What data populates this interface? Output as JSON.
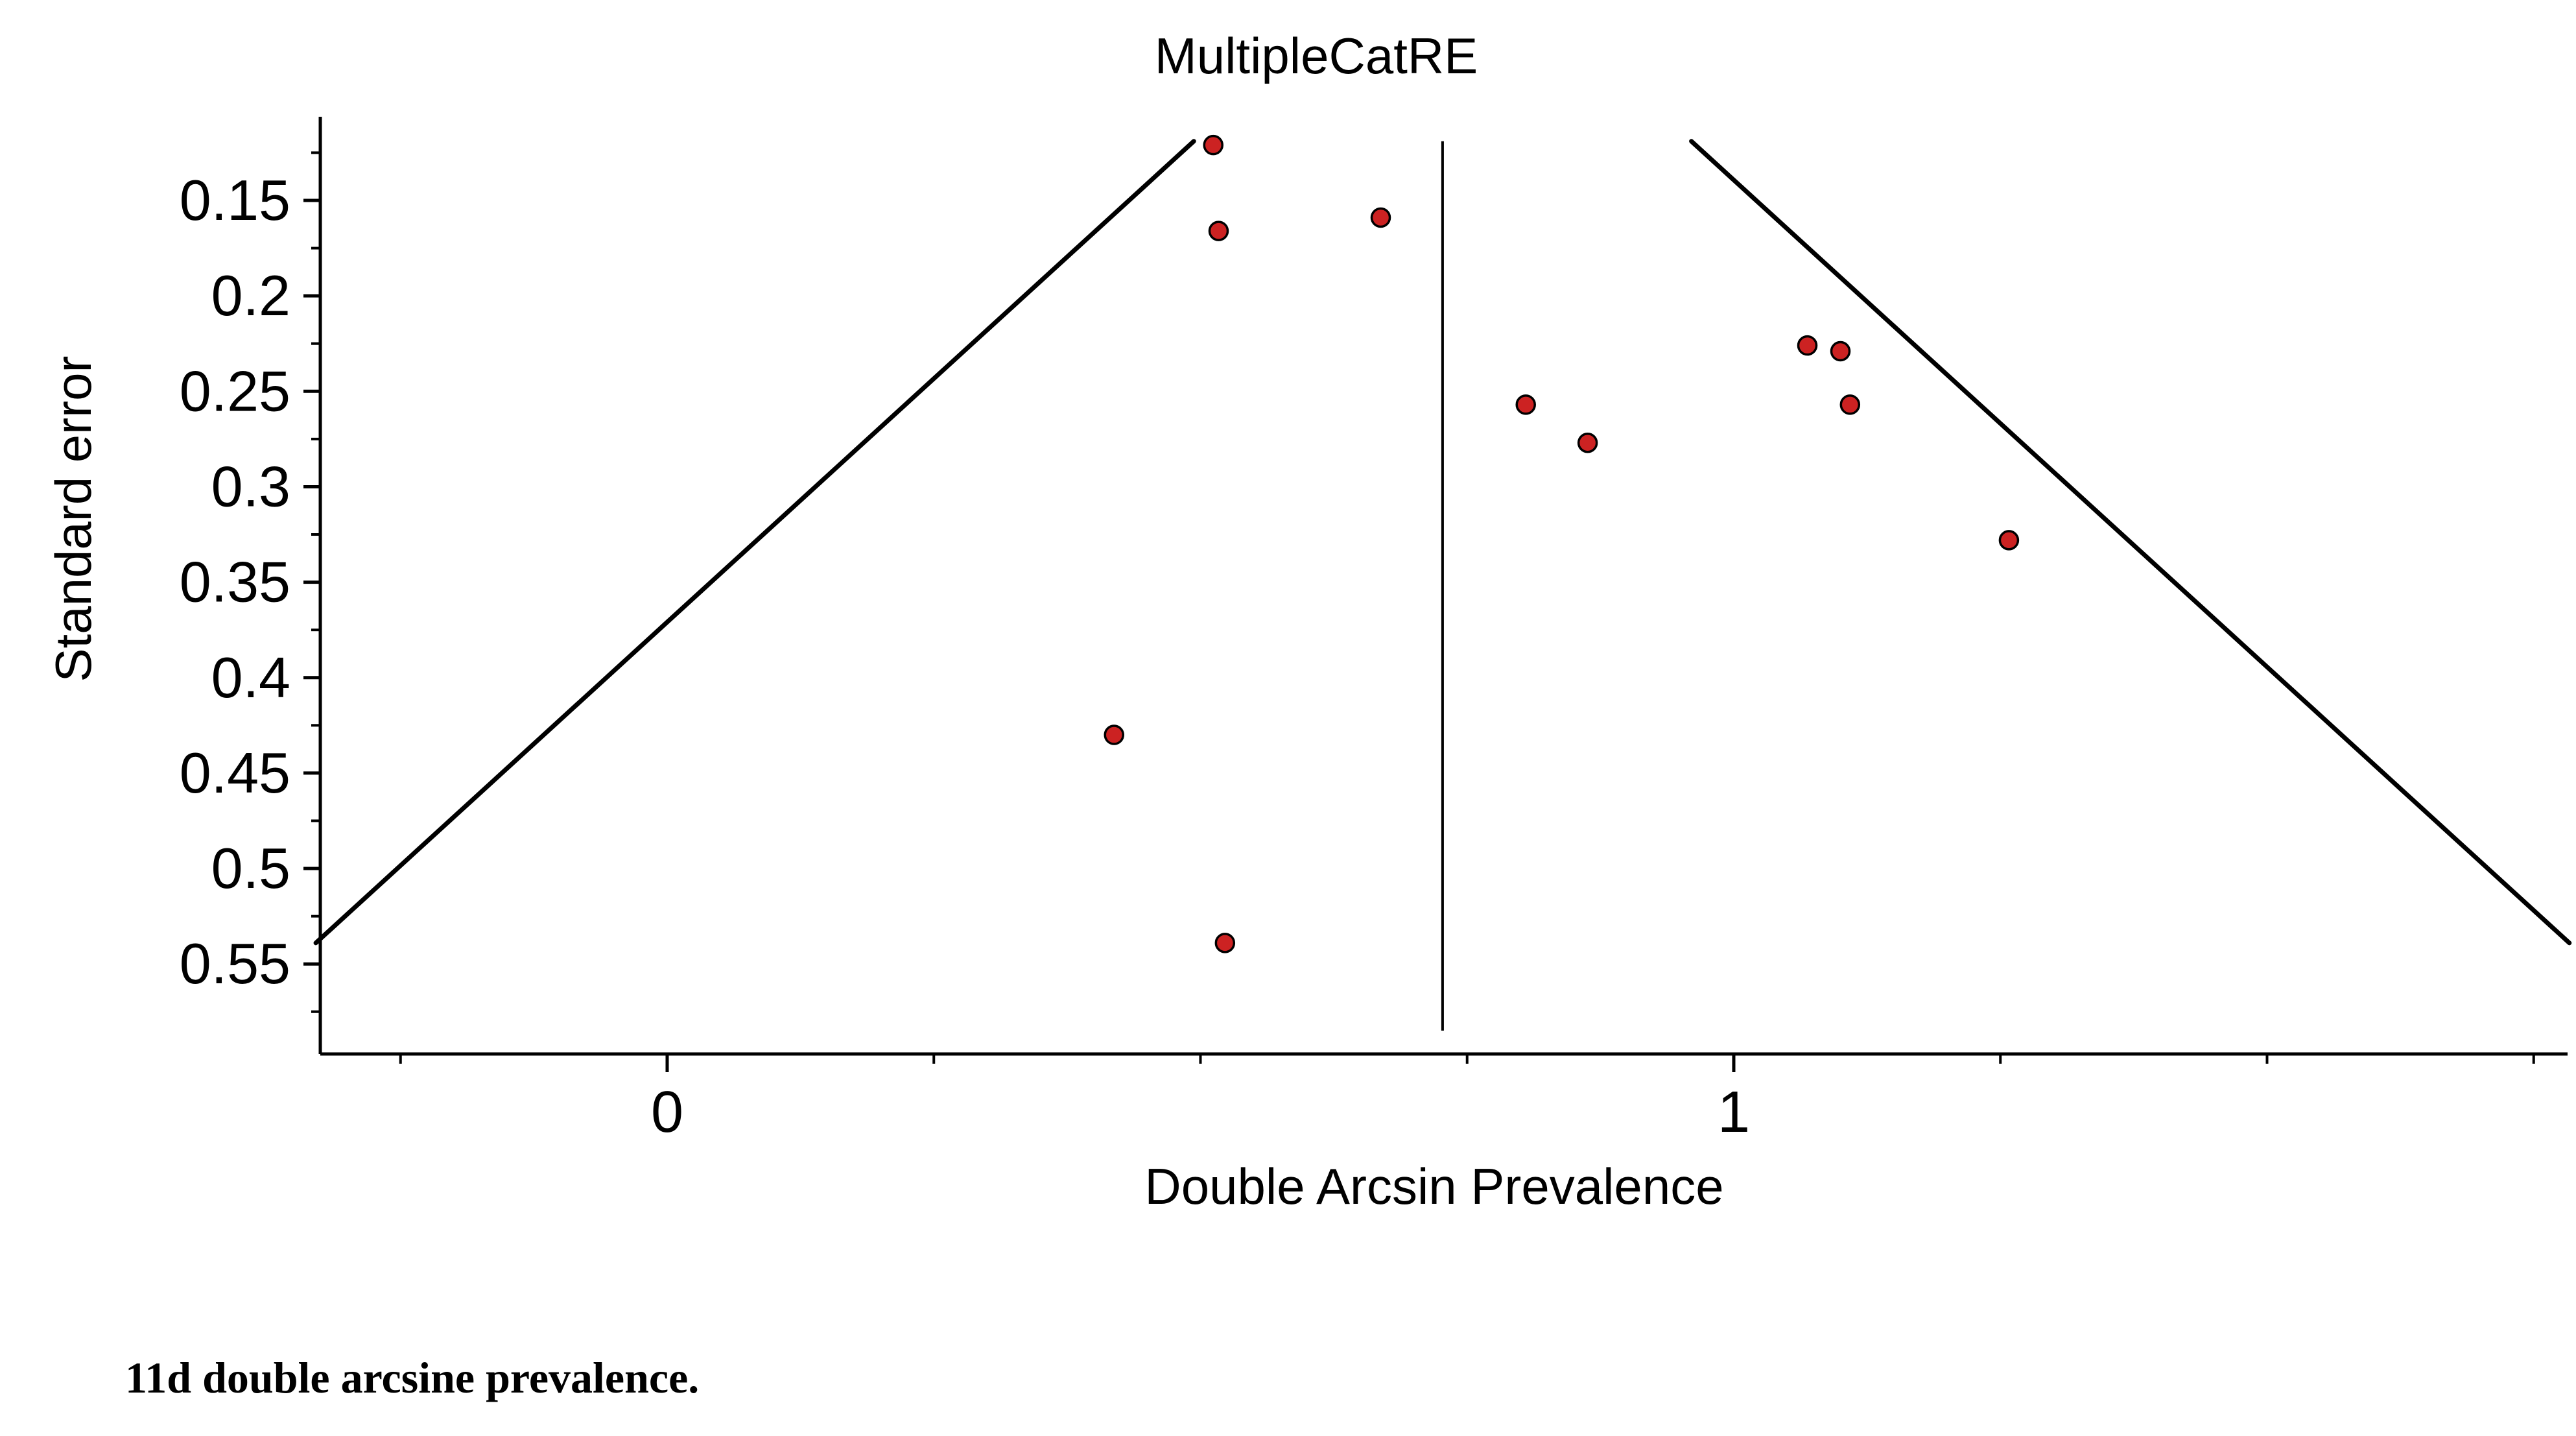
{
  "page": {
    "background": "#ffffff"
  },
  "caption": "11d double arcsine prevalence.",
  "chart_data": {
    "type": "scatter",
    "subtype": "funnel-plot",
    "title": "MultipleCatRE",
    "title_color": "#0000EE",
    "xlabel": "Double Arcsin Prevalence",
    "ylabel": "Standard error",
    "xlim": [
      -0.325,
      1.782
    ],
    "ylim": [
      0.106,
      0.597
    ],
    "y_inverted": true,
    "grid": false,
    "legend": false,
    "x_ticks_major": [
      0,
      1
    ],
    "x_tick_labels": [
      "0",
      "1"
    ],
    "x_ticks_minor": [
      -0.25,
      0.25,
      0.5,
      0.75,
      1.25,
      1.5,
      1.75
    ],
    "y_ticks_major": [
      0.15,
      0.2,
      0.25,
      0.3,
      0.35,
      0.4,
      0.45,
      0.5,
      0.55
    ],
    "y_tick_labels": [
      "0.15",
      "0.2",
      "0.25",
      "0.3",
      "0.35",
      "0.4",
      "0.45",
      "0.5",
      "0.55"
    ],
    "y_ticks_minor": [
      0.125,
      0.175,
      0.225,
      0.275,
      0.325,
      0.375,
      0.425,
      0.475,
      0.525,
      0.575
    ],
    "pooled_estimate": 0.727,
    "funnel": {
      "z": 1.96,
      "se_top": 0.119,
      "se_bottom": 0.539
    },
    "points": [
      {
        "x": 0.512,
        "se": 0.121
      },
      {
        "x": 0.517,
        "se": 0.166
      },
      {
        "x": 0.669,
        "se": 0.159
      },
      {
        "x": 0.805,
        "se": 0.257
      },
      {
        "x": 0.863,
        "se": 0.277
      },
      {
        "x": 1.069,
        "se": 0.226
      },
      {
        "x": 1.1,
        "se": 0.229
      },
      {
        "x": 1.109,
        "se": 0.257
      },
      {
        "x": 1.258,
        "se": 0.328
      },
      {
        "x": 0.419,
        "se": 0.43
      },
      {
        "x": 0.523,
        "se": 0.539
      }
    ],
    "point_color": "#cc2222",
    "point_edge": "#000000",
    "line_color": "#000000",
    "axis_color": "#000000"
  }
}
